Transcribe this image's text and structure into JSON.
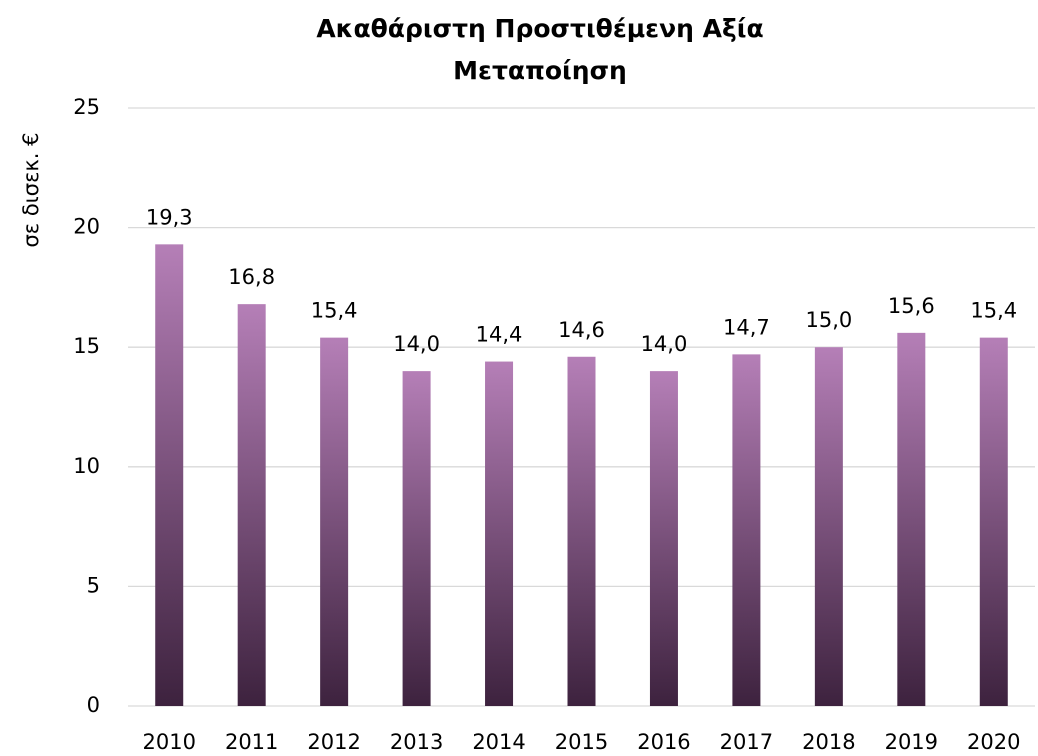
{
  "chart_data": {
    "type": "bar",
    "title": "Ακαθάριστη Προστιθέμενη Αξία",
    "subtitle": "Μεταποίηση",
    "y_label": "σε δισεκ. €",
    "categories": [
      "2010",
      "2011",
      "2012",
      "2013",
      "2014",
      "2015",
      "2016",
      "2017",
      "2018",
      "2019",
      "2020"
    ],
    "values": [
      19.3,
      16.8,
      15.4,
      14.0,
      14.4,
      14.6,
      14.0,
      14.7,
      15.0,
      15.6,
      15.4
    ],
    "value_labels": [
      "19,3",
      "16,8",
      "15,4",
      "14,0",
      "14,4",
      "14,6",
      "14,0",
      "14,7",
      "15,0",
      "15,6",
      "15,4"
    ],
    "gradient": [
      "#b57fb7",
      "#3d223e"
    ],
    "ylim": [
      0,
      25
    ],
    "yticks": [
      0,
      5,
      10,
      15,
      20,
      25
    ],
    "grid": true
  }
}
